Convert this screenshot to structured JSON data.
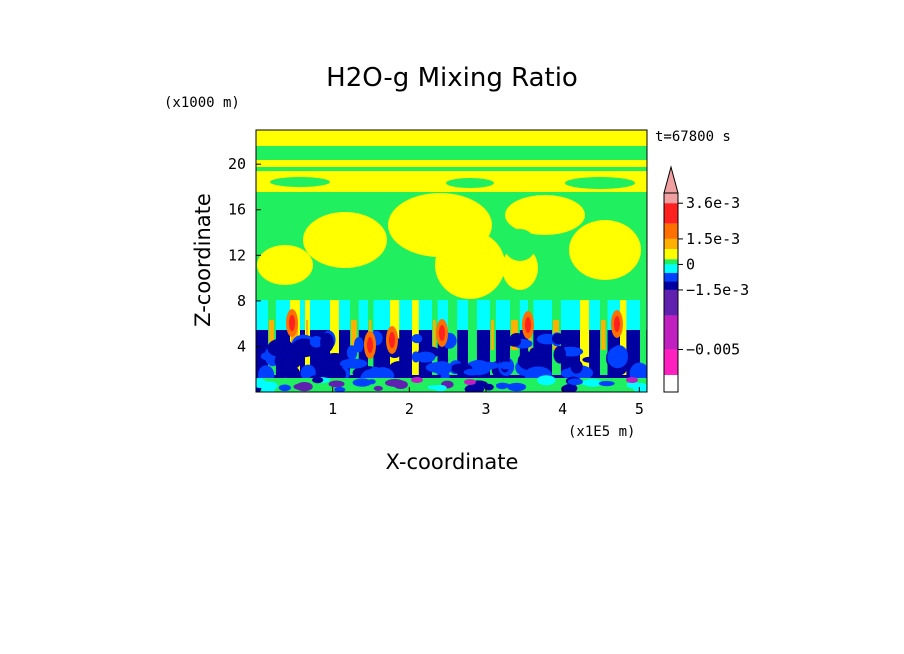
{
  "chart_data": {
    "type": "heatmap",
    "title": "H2O-g Mixing Ratio",
    "xlabel": "X-coordinate",
    "ylabel": "Z-coordinate",
    "x_units": "(x1E5 m)",
    "y_units": "(x1000 m)",
    "time_label": "t=67800 s",
    "xlim": [
      0,
      5.1
    ],
    "ylim": [
      0,
      23
    ],
    "x_ticks": [
      "1",
      "2",
      "3",
      "4",
      "5"
    ],
    "y_ticks": [
      "4",
      "8",
      "12",
      "16",
      "20"
    ],
    "x_tick_values": [
      1,
      2,
      3,
      4,
      5
    ],
    "y_tick_values": [
      4,
      8,
      12,
      16,
      20
    ],
    "colorbar": {
      "labels": [
        "3.6e-3",
        "1.5e-3",
        "0",
        "−1.5e-3",
        "−0.005"
      ],
      "label_levels": [
        0.0036,
        0.0015,
        0,
        -0.0015,
        -0.005
      ],
      "colors": [
        "#f0a0a0",
        "#ff2020",
        "#ff7000",
        "#ffb000",
        "#ffff00",
        "#20f060",
        "#00ffff",
        "#0040ff",
        "#0000a0",
        "#6020b0",
        "#c020c0",
        "#ff20c0"
      ],
      "extend": "max"
    },
    "layers": [
      {
        "zone": "near-surface",
        "z_range": [
          0,
          1.2
        ],
        "dominant": "mixed, with magenta spots"
      },
      {
        "zone": "lower",
        "z_range": [
          1.2,
          6
        ],
        "dominant": "dark blue, with orange/yellow plumes"
      },
      {
        "zone": "mid",
        "z_range": [
          6,
          8
        ],
        "dominant": "cyan"
      },
      {
        "zone": "upper",
        "z_range": [
          8,
          23
        ],
        "dominant": "green and yellow"
      }
    ]
  }
}
